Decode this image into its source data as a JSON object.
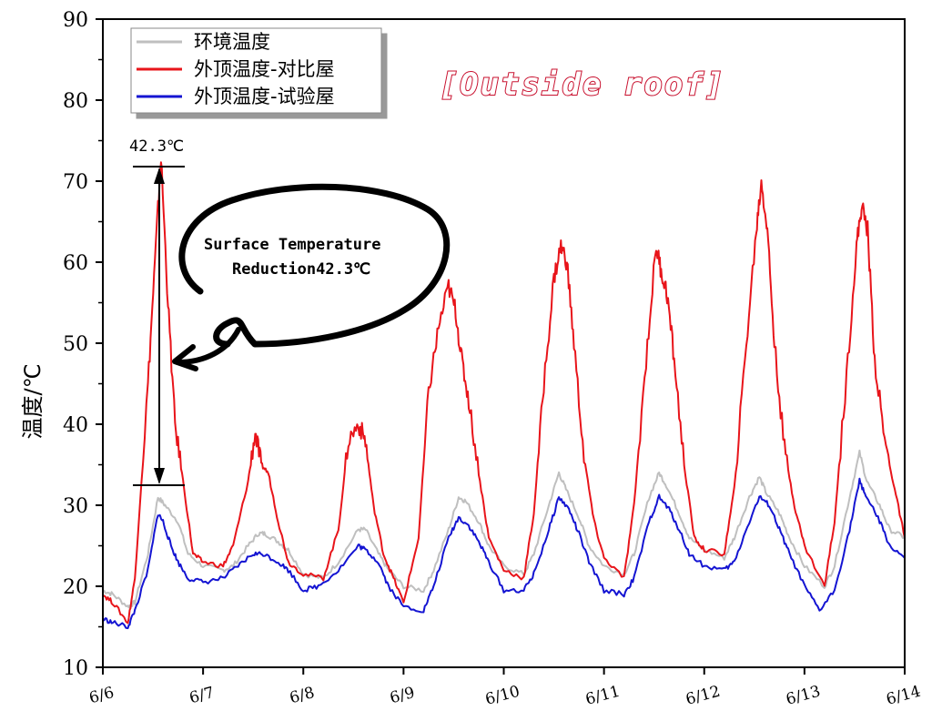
{
  "chart_data": {
    "type": "line",
    "title": "[Outside roof]",
    "ylabel": "温度/℃",
    "xlabel": "",
    "ylim": [
      10,
      90
    ],
    "yticks": [
      "10",
      "20",
      "30",
      "40",
      "50",
      "60",
      "70",
      "80",
      "90"
    ],
    "x_tick_labels": [
      "6/6",
      "6/7",
      "6/8",
      "6/9",
      "6/10",
      "6/11",
      "6/12",
      "6/13",
      "6/14"
    ],
    "xlim_days": [
      0,
      8
    ],
    "legend_position": "top-left",
    "series": [
      {
        "name": "环境温度",
        "color": "#bfbfbf",
        "x": [
          0,
          0.1,
          0.25,
          0.32,
          0.45,
          0.55,
          0.62,
          0.75,
          0.85,
          1.0,
          1.2,
          1.3,
          1.45,
          1.55,
          1.62,
          1.75,
          1.85,
          2.0,
          2.2,
          2.35,
          2.55,
          2.62,
          2.75,
          2.85,
          3.0,
          3.2,
          3.3,
          3.45,
          3.55,
          3.62,
          3.75,
          3.85,
          4.0,
          4.2,
          4.3,
          4.45,
          4.55,
          4.62,
          4.75,
          4.85,
          5.0,
          5.2,
          5.3,
          5.45,
          5.55,
          5.62,
          5.75,
          5.85,
          6.0,
          6.2,
          6.3,
          6.45,
          6.55,
          6.62,
          6.75,
          6.85,
          7.0,
          7.2,
          7.3,
          7.45,
          7.55,
          7.62,
          7.75,
          7.85,
          8.0
        ],
        "values": [
          19.5,
          19,
          17.5,
          18,
          24,
          31,
          30,
          28,
          24,
          22.5,
          22,
          22.5,
          25,
          26.5,
          26.5,
          25.5,
          24.5,
          21.5,
          21,
          23,
          27,
          27,
          24,
          22,
          20,
          19.5,
          22,
          27,
          31,
          30.5,
          28,
          25,
          22.5,
          21.5,
          24,
          30,
          34,
          32,
          28.5,
          25,
          22.5,
          21.5,
          24,
          31,
          34,
          32.5,
          29,
          26,
          24.5,
          23.5,
          26,
          31,
          33.5,
          31.5,
          29,
          26,
          22.5,
          20,
          22.5,
          31,
          36.5,
          33,
          30,
          27,
          26
        ]
      },
      {
        "name": "外顶温度-对比屋",
        "color": "#e8141a",
        "x": [
          0,
          0.1,
          0.25,
          0.32,
          0.45,
          0.52,
          0.58,
          0.65,
          0.72,
          0.8,
          0.9,
          1.0,
          1.2,
          1.3,
          1.45,
          1.52,
          1.58,
          1.65,
          1.75,
          1.85,
          2.0,
          2.2,
          2.35,
          2.45,
          2.55,
          2.62,
          2.7,
          2.8,
          2.9,
          3.0,
          3.15,
          3.25,
          3.35,
          3.45,
          3.52,
          3.58,
          3.65,
          3.75,
          3.85,
          4.0,
          4.2,
          4.3,
          4.4,
          4.5,
          4.57,
          4.63,
          4.7,
          4.8,
          4.9,
          5.0,
          5.2,
          5.3,
          5.42,
          5.52,
          5.57,
          5.63,
          5.7,
          5.8,
          5.9,
          6.0,
          6.2,
          6.3,
          6.42,
          6.52,
          6.57,
          6.63,
          6.7,
          6.8,
          6.9,
          7.0,
          7.2,
          7.3,
          7.42,
          7.52,
          7.57,
          7.63,
          7.7,
          7.8,
          7.9,
          8.0
        ],
        "values": [
          19,
          18,
          15.5,
          21,
          45,
          60,
          73,
          55,
          40,
          33,
          24,
          23,
          22.5,
          25,
          33,
          39,
          35,
          34,
          28,
          23,
          21.5,
          21,
          27,
          38,
          40,
          38,
          30,
          24,
          21,
          18,
          26,
          44,
          52,
          57,
          54,
          48,
          43,
          34,
          26,
          22,
          21,
          29,
          45,
          58,
          62,
          60,
          50,
          36,
          28,
          23.5,
          21,
          30,
          48,
          62,
          59,
          56,
          48,
          35,
          26,
          24.5,
          24,
          32,
          50,
          64,
          70,
          64,
          50,
          37,
          30,
          25,
          20,
          28,
          46,
          62,
          67,
          64,
          48,
          38,
          32,
          26
        ]
      },
      {
        "name": "外顶温度-试验屋",
        "color": "#1414d2",
        "x": [
          0,
          0.1,
          0.25,
          0.32,
          0.45,
          0.55,
          0.6,
          0.68,
          0.75,
          0.85,
          1.0,
          1.2,
          1.35,
          1.5,
          1.6,
          1.75,
          1.85,
          2.0,
          2.15,
          2.35,
          2.55,
          2.62,
          2.75,
          2.85,
          3.0,
          3.2,
          3.3,
          3.45,
          3.55,
          3.65,
          3.75,
          3.85,
          4.0,
          4.2,
          4.3,
          4.45,
          4.55,
          4.65,
          4.75,
          4.85,
          5.0,
          5.2,
          5.3,
          5.45,
          5.55,
          5.65,
          5.75,
          5.85,
          6.0,
          6.2,
          6.3,
          6.45,
          6.55,
          6.65,
          6.75,
          6.85,
          7.0,
          7.15,
          7.3,
          7.45,
          7.55,
          7.62,
          7.75,
          7.85,
          8.0
        ],
        "values": [
          16,
          15.5,
          15,
          17,
          22,
          29,
          28,
          25,
          23,
          21,
          20.5,
          21,
          22.5,
          24,
          24,
          23,
          22,
          19.5,
          20,
          22,
          25,
          24.5,
          23,
          20,
          17.5,
          17,
          20,
          26,
          28.5,
          27.5,
          25.5,
          23,
          19.5,
          19.5,
          21.5,
          27,
          31,
          29.5,
          26.5,
          23,
          19.5,
          19,
          21,
          28,
          31,
          29.5,
          27,
          24,
          22.5,
          22,
          23,
          28,
          31,
          30,
          27,
          24,
          20,
          17,
          19.5,
          27,
          33,
          31,
          28,
          25,
          23.5
        ]
      }
    ],
    "annotations": {
      "max_label": "42.3℃",
      "bubble_line1": "Surface Temperature",
      "bubble_line2": "Reduction42.3℃"
    }
  }
}
